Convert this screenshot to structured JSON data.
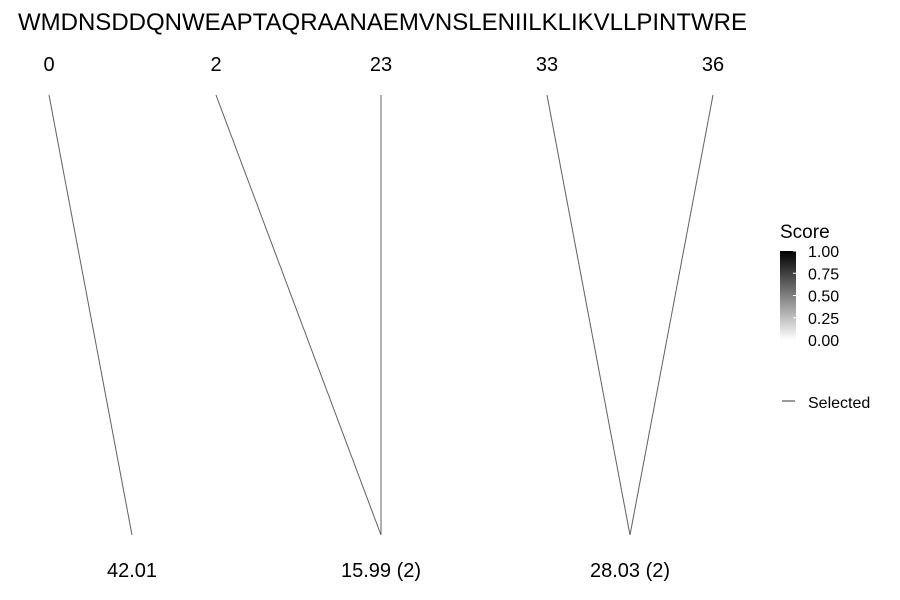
{
  "chart_data": {
    "type": "line",
    "sequence": "WMDNSDDQNWEAPTAQRAANAEMVNSLENIILKLIKVLLPINTWRE",
    "top_labels": [
      "0",
      "2",
      "23",
      "33",
      "36"
    ],
    "bottom_labels": [
      "42.01",
      "15.99 (2)",
      "28.03 (2)"
    ],
    "links": [
      {
        "from": "0",
        "to": "42.01",
        "score": 0.5,
        "selected": true
      },
      {
        "from": "2",
        "to": "15.99 (2)",
        "score": 0.5,
        "selected": true
      },
      {
        "from": "23",
        "to": "15.99 (2)",
        "score": 0.5,
        "selected": true
      },
      {
        "from": "33",
        "to": "28.03 (2)",
        "score": 0.5,
        "selected": true
      },
      {
        "from": "36",
        "to": "28.03 (2)",
        "score": 0.5,
        "selected": true
      }
    ],
    "legend": {
      "title": "Score",
      "ticks": [
        "1.00",
        "0.75",
        "0.50",
        "0.25",
        "0.00"
      ],
      "range": [
        0,
        1
      ],
      "gradient_colors": [
        "#000000",
        "#ffffff"
      ],
      "line_label": "Selected",
      "placement": "right"
    }
  }
}
